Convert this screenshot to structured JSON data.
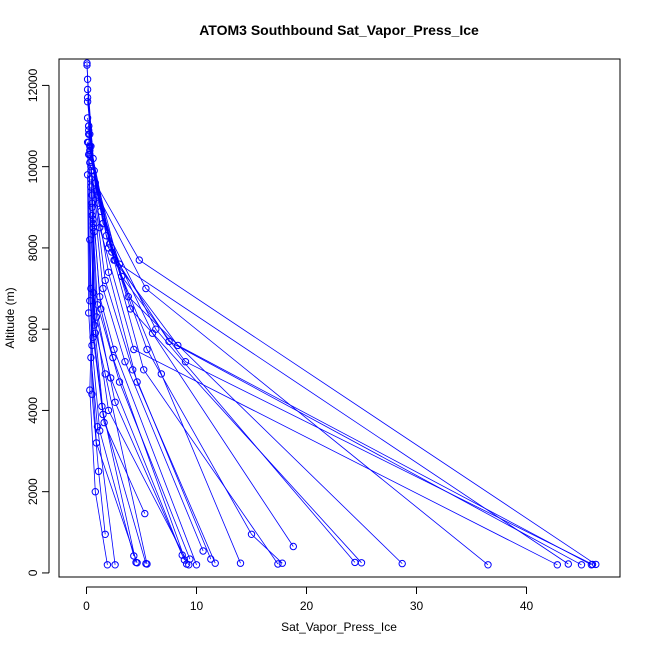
{
  "chart_data": {
    "type": "line",
    "title": "ATOM3 Southbound Sat_Vapor_Press_Ice",
    "xlabel": "Sat_Vapor_Press_Ice",
    "ylabel": "Altitude (m)",
    "xlim": [
      -2.5,
      48.5
    ],
    "ylim": [
      -100,
      12650
    ],
    "x_ticks": [
      0,
      10,
      20,
      30,
      40
    ],
    "y_ticks": [
      0,
      2000,
      4000,
      6000,
      8000,
      10000,
      12000
    ],
    "grid": false,
    "legend": "none",
    "point_style": "open-circle",
    "line_color": "#0000ff",
    "series": [
      {
        "x": [
          0.05,
          0.3,
          1.2,
          4.3,
          42.8
        ],
        "y": [
          12550,
          10800,
          8500,
          5500,
          200
        ]
      },
      {
        "x": [
          0.05,
          0.4,
          2.0,
          7.5,
          45.0
        ],
        "y": [
          12500,
          10500,
          8000,
          5700,
          200
        ]
      },
      {
        "x": [
          0.1,
          0.6,
          2.5,
          8.3,
          45.9
        ],
        "y": [
          12150,
          10200,
          7700,
          5600,
          200
        ]
      },
      {
        "x": [
          0.1,
          0.7,
          3.2,
          9.0,
          46.0
        ],
        "y": [
          11900,
          9900,
          7300,
          5200,
          210
        ]
      },
      {
        "x": [
          0.1,
          0.8,
          4.8,
          46.3
        ],
        "y": [
          11700,
          9600,
          7700,
          210
        ]
      },
      {
        "x": [
          0.1,
          0.9,
          3.0,
          43.8
        ],
        "y": [
          11600,
          9400,
          7600,
          220
        ]
      },
      {
        "x": [
          0.1,
          1.0,
          5.4,
          36.5
        ],
        "y": [
          11200,
          9300,
          7000,
          200
        ]
      },
      {
        "x": [
          0.2,
          1.1,
          3.8,
          28.7
        ],
        "y": [
          11000,
          9100,
          6800,
          230
        ]
      },
      {
        "x": [
          0.2,
          1.3,
          4.0,
          25.0
        ],
        "y": [
          10900,
          8900,
          6500,
          250
        ]
      },
      {
        "x": [
          0.2,
          1.5,
          6.3,
          24.4
        ],
        "y": [
          10800,
          8600,
          6000,
          260
        ]
      },
      {
        "x": [
          0.2,
          1.8,
          6.0,
          18.8
        ],
        "y": [
          10600,
          8300,
          5900,
          650
        ]
      },
      {
        "x": [
          0.3,
          2.1,
          5.5,
          15.0,
          17.8
        ],
        "y": [
          10500,
          8100,
          5500,
          950,
          240
        ]
      },
      {
        "x": [
          0.3,
          2.3,
          5.2,
          17.4
        ],
        "y": [
          10400,
          7900,
          5000,
          220
        ]
      },
      {
        "x": [
          0.3,
          2.6,
          6.8,
          14.0
        ],
        "y": [
          10300,
          7700,
          4900,
          240
        ]
      },
      {
        "x": [
          0.3,
          2.0,
          4.6,
          11.7
        ],
        "y": [
          10100,
          7400,
          4700,
          240
        ]
      },
      {
        "x": [
          0.4,
          1.7,
          4.2,
          11.3
        ],
        "y": [
          10000,
          7200,
          5000,
          340
        ]
      },
      {
        "x": [
          0.4,
          1.5,
          3.5,
          10.6
        ],
        "y": [
          9900,
          7000,
          5200,
          540
        ]
      },
      {
        "x": [
          0.4,
          1.2,
          2.5,
          10.0
        ],
        "y": [
          9700,
          6800,
          5500,
          200
        ]
      },
      {
        "x": [
          0.4,
          1.0,
          3.0,
          9.4
        ],
        "y": [
          9500,
          6600,
          4700,
          340
        ]
      },
      {
        "x": [
          0.5,
          1.3,
          2.4,
          9.1
        ],
        "y": [
          9300,
          6500,
          5300,
          220
        ]
      },
      {
        "x": [
          0.5,
          0.9,
          2.2,
          8.7
        ],
        "y": [
          9100,
          6300,
          4800,
          440
        ]
      },
      {
        "x": [
          0.5,
          0.7,
          1.7,
          5.5
        ],
        "y": [
          9000,
          6100,
          4900,
          220
        ]
      },
      {
        "x": [
          0.5,
          0.8,
          1.6,
          5.3
        ],
        "y": [
          8800,
          5900,
          3700,
          1460
        ]
      },
      {
        "x": [
          0.6,
          0.6,
          1.4,
          4.5
        ],
        "y": [
          8700,
          5800,
          4100,
          260
        ]
      },
      {
        "x": [
          0.6,
          0.5,
          1.2,
          4.3
        ],
        "y": [
          8600,
          5600,
          3500,
          420
        ]
      },
      {
        "x": [
          0.6,
          0.4,
          1.0,
          2.6
        ],
        "y": [
          8500,
          5300,
          3600,
          200
        ]
      },
      {
        "x": [
          0.7,
          0.3,
          0.8,
          1.9
        ],
        "y": [
          8400,
          4500,
          2000,
          200
        ]
      },
      {
        "x": [
          0.3,
          0.5,
          1.1,
          1.7
        ],
        "y": [
          8200,
          4400,
          2500,
          950
        ]
      },
      {
        "x": [
          0.2,
          0.4,
          2.0,
          9.3
        ],
        "y": [
          11000,
          7000,
          4000,
          200
        ]
      },
      {
        "x": [
          0.1,
          0.3,
          1.5,
          5.4
        ],
        "y": [
          10600,
          6700,
          3900,
          230
        ]
      },
      {
        "x": [
          0.2,
          0.6,
          2.6,
          8.9
        ],
        "y": [
          10300,
          6900,
          4200,
          320
        ]
      },
      {
        "x": [
          0.1,
          0.2,
          0.9,
          4.6
        ],
        "y": [
          9800,
          6400,
          3200,
          250
        ]
      }
    ]
  }
}
